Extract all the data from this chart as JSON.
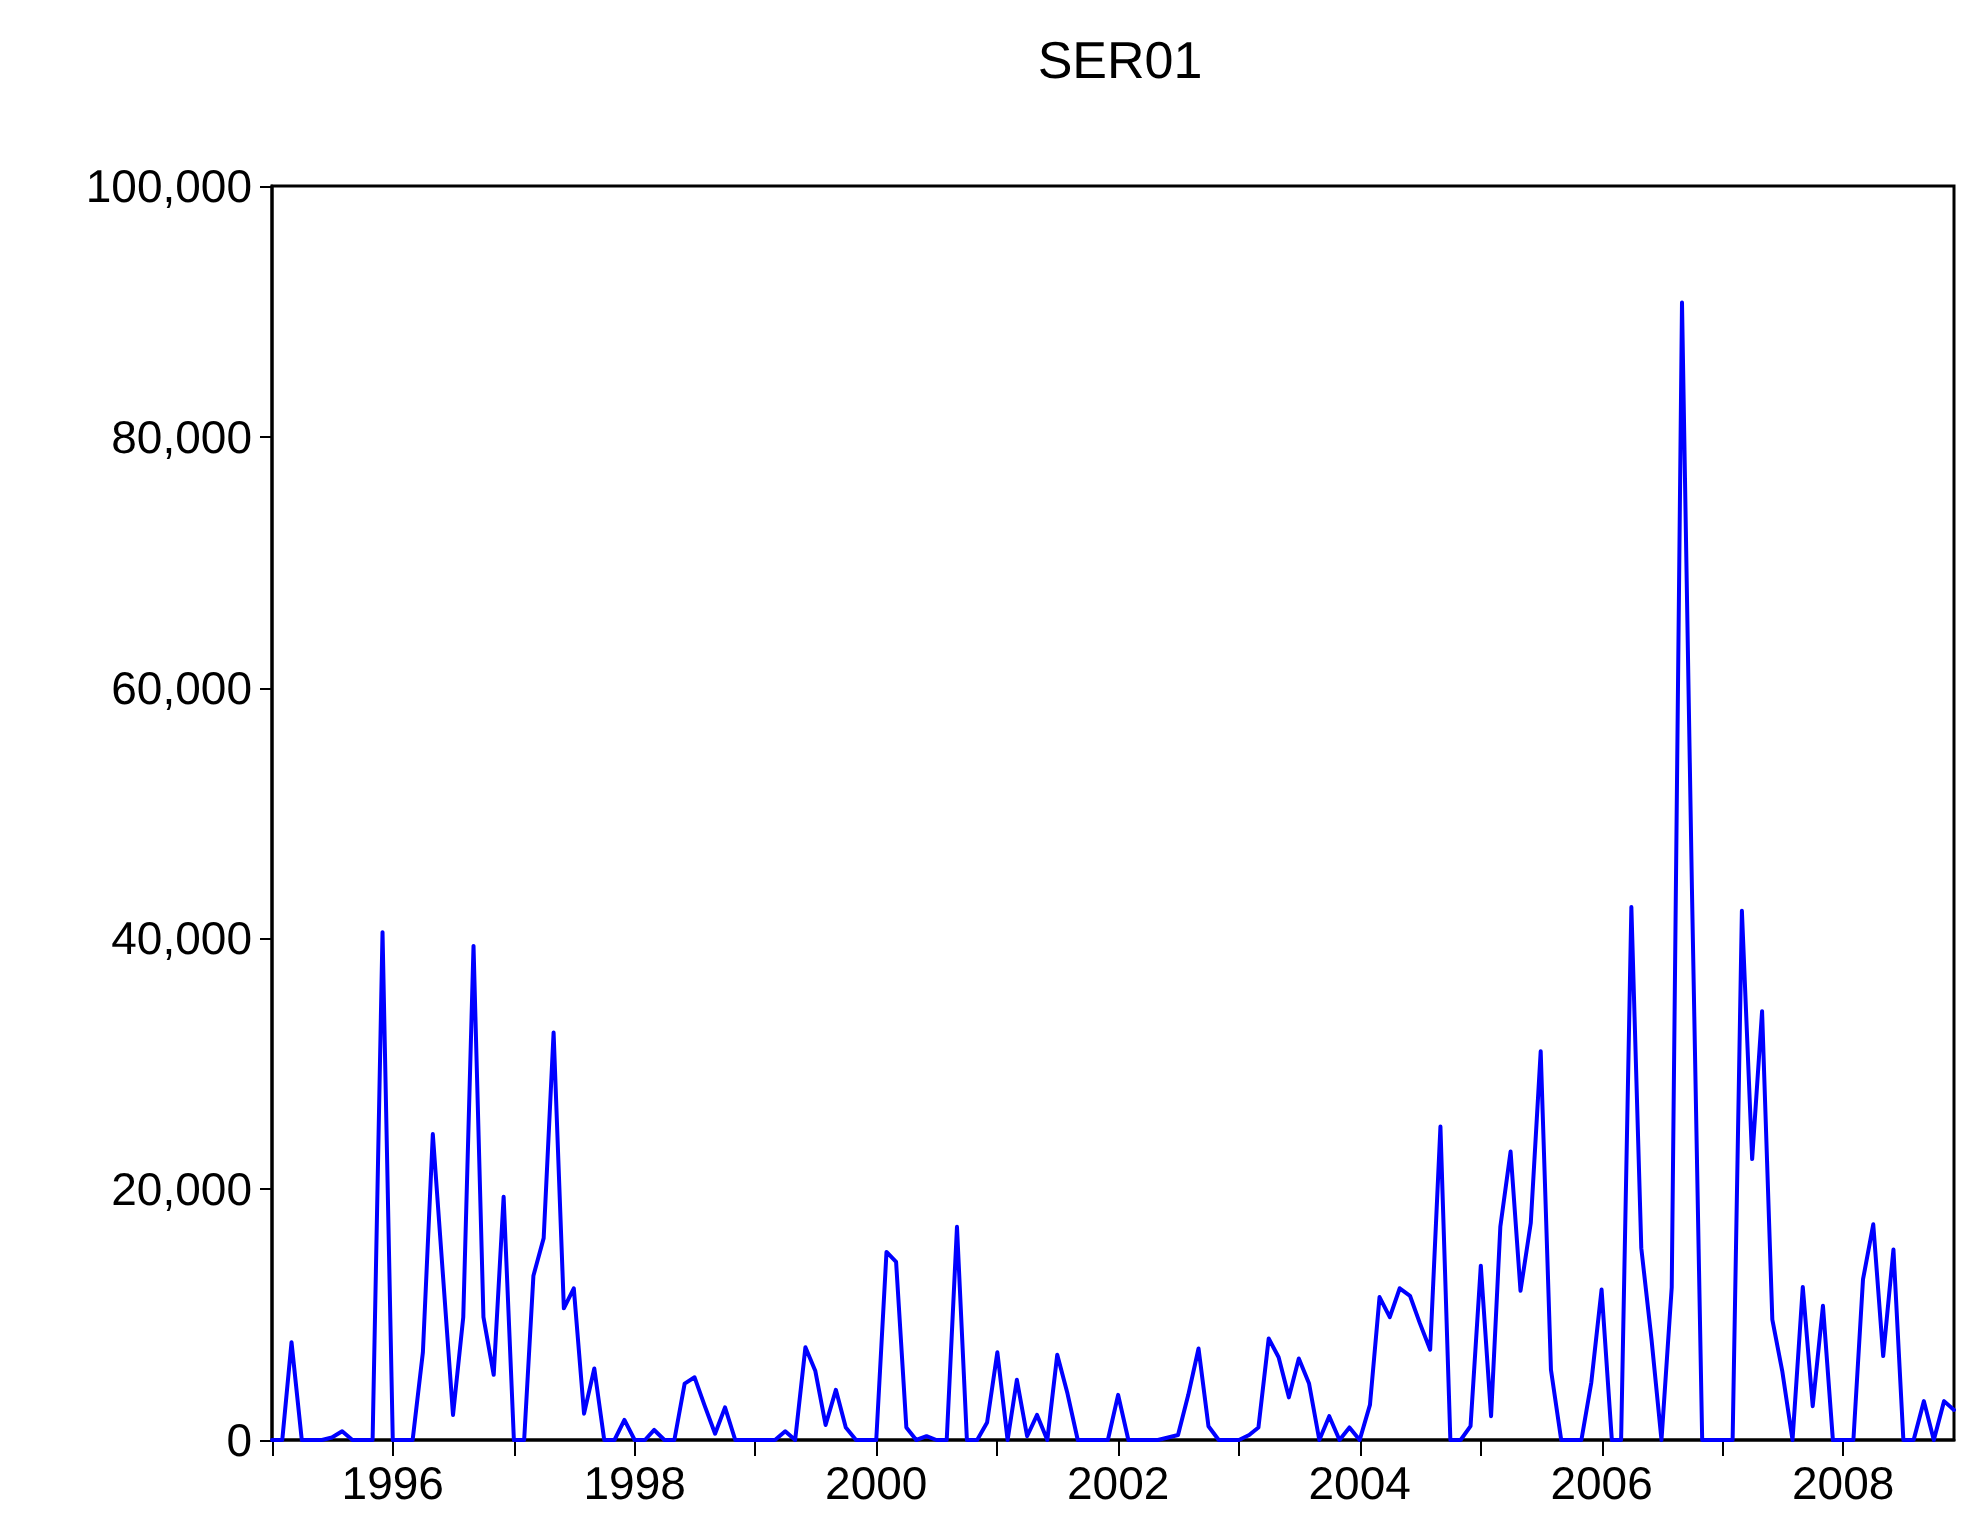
{
  "chart_data": {
    "type": "line",
    "title": "SER01",
    "x": [
      "1995-01",
      "1995-02",
      "1995-03",
      "1995-04",
      "1995-05",
      "1995-06",
      "1995-07",
      "1995-08",
      "1995-09",
      "1995-10",
      "1995-11",
      "1995-12",
      "1996-01",
      "1996-02",
      "1996-03",
      "1996-04",
      "1996-05",
      "1996-06",
      "1996-07",
      "1996-08",
      "1996-09",
      "1996-10",
      "1996-11",
      "1996-12",
      "1997-01",
      "1997-02",
      "1997-03",
      "1997-04",
      "1997-05",
      "1997-06",
      "1997-07",
      "1997-08",
      "1997-09",
      "1997-10",
      "1997-11",
      "1997-12",
      "1998-01",
      "1998-02",
      "1998-03",
      "1998-04",
      "1998-05",
      "1998-06",
      "1998-07",
      "1998-08",
      "1998-09",
      "1998-10",
      "1998-11",
      "1998-12",
      "1999-01",
      "1999-02",
      "1999-03",
      "1999-04",
      "1999-05",
      "1999-06",
      "1999-07",
      "1999-08",
      "1999-09",
      "1999-10",
      "1999-11",
      "1999-12",
      "2000-01",
      "2000-02",
      "2000-03",
      "2000-04",
      "2000-05",
      "2000-06",
      "2000-07",
      "2000-08",
      "2000-09",
      "2000-10",
      "2000-11",
      "2000-12",
      "2001-01",
      "2001-02",
      "2001-03",
      "2001-04",
      "2001-05",
      "2001-06",
      "2001-07",
      "2001-08",
      "2001-09",
      "2001-10",
      "2001-11",
      "2001-12",
      "2002-01",
      "2002-02",
      "2002-03",
      "2002-04",
      "2002-05",
      "2002-06",
      "2002-07",
      "2002-08",
      "2002-09",
      "2002-10",
      "2002-11",
      "2002-12",
      "2003-01",
      "2003-02",
      "2003-03",
      "2003-04",
      "2003-05",
      "2003-06",
      "2003-07",
      "2003-08",
      "2003-09",
      "2003-10",
      "2003-11",
      "2003-12",
      "2004-01",
      "2004-02",
      "2004-03",
      "2004-04",
      "2004-05",
      "2004-06",
      "2004-07",
      "2004-08",
      "2004-09",
      "2004-10",
      "2004-11",
      "2004-12",
      "2005-01",
      "2005-02",
      "2005-03",
      "2005-04",
      "2005-05",
      "2005-06",
      "2005-07",
      "2005-08",
      "2005-09",
      "2005-10",
      "2005-11",
      "2005-12",
      "2006-01",
      "2006-02",
      "2006-03",
      "2006-04",
      "2006-05",
      "2006-06",
      "2006-07",
      "2006-08",
      "2006-09",
      "2006-10",
      "2006-11",
      "2006-12",
      "2007-01",
      "2007-02",
      "2007-03",
      "2007-04",
      "2007-05",
      "2007-06",
      "2007-07",
      "2007-08",
      "2007-09",
      "2007-10",
      "2007-11",
      "2007-12",
      "2008-01",
      "2008-02",
      "2008-03",
      "2008-04",
      "2008-05",
      "2008-06",
      "2008-07",
      "2008-08",
      "2008-09",
      "2008-10",
      "2008-11",
      "2008-12"
    ],
    "series": [
      {
        "color": "#0000ff",
        "values": [
          0,
          0,
          7800,
          0,
          0,
          0,
          200,
          700,
          0,
          0,
          0,
          40500,
          0,
          0,
          0,
          7000,
          24400,
          13000,
          2000,
          9800,
          39400,
          9800,
          5200,
          19400,
          0,
          0,
          13100,
          16100,
          32500,
          10500,
          12100,
          2100,
          5700,
          0,
          0,
          1600,
          0,
          0,
          800,
          0,
          0,
          4500,
          5000,
          2700,
          500,
          2600,
          0,
          0,
          0,
          0,
          0,
          700,
          0,
          7400,
          5500,
          1200,
          4000,
          1000,
          0,
          0,
          0,
          15000,
          14200,
          1000,
          0,
          300,
          0,
          0,
          17000,
          0,
          0,
          1400,
          7000,
          0,
          4800,
          300,
          2000,
          0,
          6800,
          3700,
          0,
          0,
          0,
          0,
          3600,
          0,
          0,
          0,
          0,
          200,
          400,
          3600,
          7300,
          1100,
          0,
          0,
          0,
          400,
          1000,
          8100,
          6600,
          3400,
          6500,
          4500,
          0,
          1900,
          0,
          1000,
          0,
          2800,
          11400,
          9800,
          12100,
          11500,
          9300,
          7200,
          25000,
          0,
          0,
          1100,
          13900,
          1900,
          17000,
          23000,
          11900,
          17300,
          31000,
          5600,
          0,
          0,
          0,
          4600,
          12000,
          0,
          0,
          42500,
          15300,
          8000,
          0,
          12200,
          90700,
          44000,
          0,
          0,
          0,
          0,
          42200,
          22400,
          34200,
          9600,
          5500,
          0,
          12200,
          2700,
          10700,
          0,
          0,
          0,
          12800,
          17200,
          6700,
          15200,
          0,
          0,
          3100,
          0,
          3100,
          2400
        ]
      }
    ],
    "xlim": [
      "1995-01",
      "2008-12"
    ],
    "xticks": [
      {
        "value": "1995-01",
        "label": null
      },
      {
        "value": "1996-01",
        "label": "1996"
      },
      {
        "value": "1997-01",
        "label": null
      },
      {
        "value": "1998-01",
        "label": "1998"
      },
      {
        "value": "1999-01",
        "label": null
      },
      {
        "value": "2000-01",
        "label": "2000"
      },
      {
        "value": "2001-01",
        "label": null
      },
      {
        "value": "2002-01",
        "label": "2002"
      },
      {
        "value": "2003-01",
        "label": null
      },
      {
        "value": "2004-01",
        "label": "2004"
      },
      {
        "value": "2005-01",
        "label": null
      },
      {
        "value": "2006-01",
        "label": "2006"
      },
      {
        "value": "2007-01",
        "label": null
      },
      {
        "value": "2008-01",
        "label": "2008"
      }
    ],
    "ylim": [
      0,
      100000
    ],
    "yticks": [
      0,
      {
        "value": 20000,
        "label": "20,000"
      },
      {
        "value": 40000,
        "label": "40,000"
      },
      {
        "value": 60000,
        "label": "60,000"
      },
      {
        "value": 80000,
        "label": "80,000"
      },
      {
        "value": 100000,
        "label": "100,000"
      }
    ],
    "grid": false,
    "marker": "none",
    "line_style": "solid"
  }
}
